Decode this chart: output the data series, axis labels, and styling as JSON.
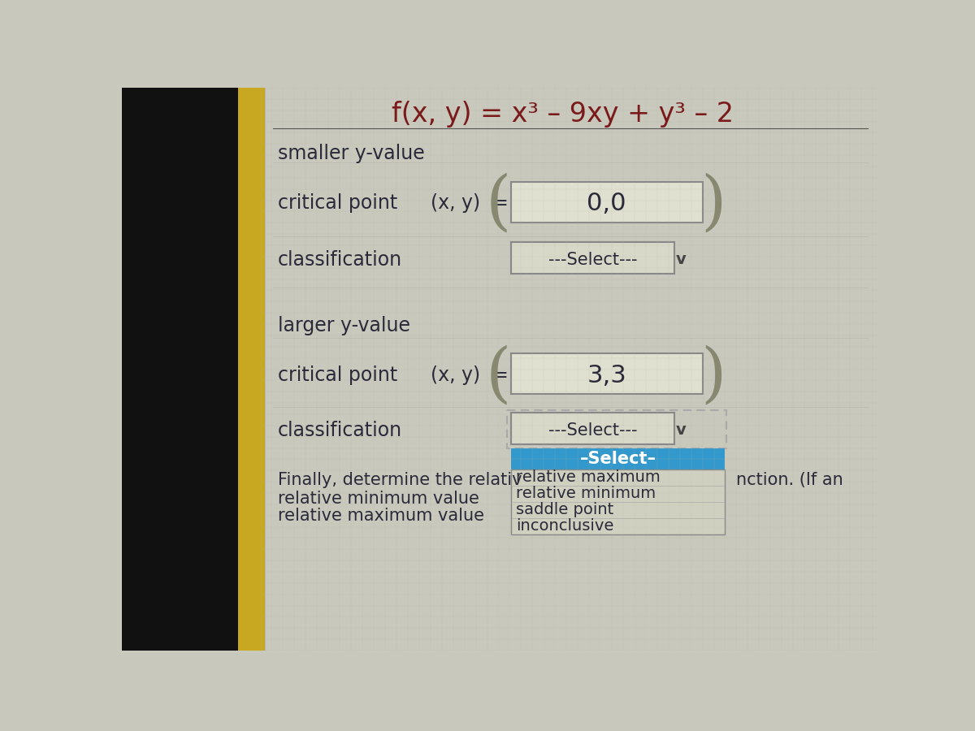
{
  "bg_color": "#c8c8bc",
  "dark_left_color": "#1a1a1a",
  "gold_bar_color": "#c8a820",
  "title": "f(x, y) = x³ – 9xy + y³ – 2",
  "smaller_y_label": "smaller y-value",
  "larger_y_label": "larger y-value",
  "critical_point_label": "critical point",
  "classification_label": "classification",
  "xy_eq": "(x, y)  =",
  "cp1_value": "0,0",
  "cp2_value": "3,3",
  "select_text": "---Select---",
  "select_highlighted": "–Select–",
  "dropdown_options": [
    "relative maximum",
    "relative minimum",
    "saddle point",
    "inconclusive"
  ],
  "finally_text_left": "Finally, determine the relativ",
  "finally_text_right": "nction. (If an",
  "rel_min_label": "relative minimum value",
  "rel_max_label": "relative maximum value",
  "text_color": "#2a2a3a",
  "title_color": "#7a1a1a",
  "input_box_bg": "#e0e0d0",
  "input_box_border": "#888888",
  "select_box_bg": "#d8d8c8",
  "select_box_border": "#888888",
  "dropdown_bg": "#d0d0c0",
  "dropdown_border": "#888888",
  "highlight_bg": "#3399cc",
  "highlight_text": "#ffffff",
  "dashed_border_color": "#aaaaaa",
  "paren_color": "#888870",
  "arrow_color": "#444444",
  "grid_color": "#b8b8ac"
}
